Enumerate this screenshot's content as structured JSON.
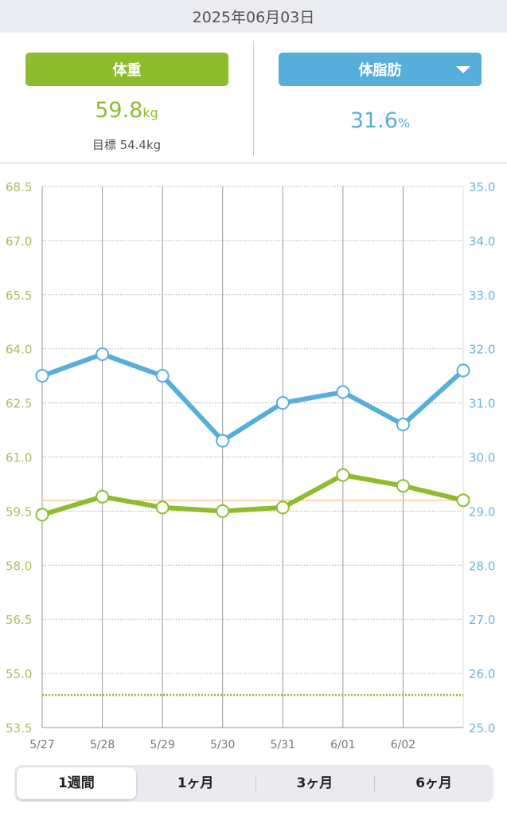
{
  "header": {
    "date": "2025年06月03日"
  },
  "summary": {
    "weight": {
      "label": "体重",
      "value": "59.8",
      "unit": "kg",
      "target_label": "目標 54.4kg"
    },
    "body_fat": {
      "label": "体脂肪",
      "value": "31.6",
      "unit": "%",
      "dropdown_icon": "caret-down-icon"
    }
  },
  "colors": {
    "weight": "#8fbc2f",
    "body_fat": "#58aedb",
    "current_line": "#f5c99a",
    "grid": "#999999"
  },
  "chart_data": {
    "type": "line",
    "categories": [
      "5/27",
      "5/28",
      "5/29",
      "5/30",
      "5/31",
      "6/01",
      "6/02",
      "6/03"
    ],
    "x_tick_labels": [
      "5/27",
      "5/28",
      "5/29",
      "5/30",
      "5/31",
      "6/01",
      "6/02",
      ""
    ],
    "series": [
      {
        "name": "体重",
        "axis": "left",
        "values": [
          59.4,
          59.9,
          59.6,
          59.5,
          59.6,
          60.5,
          60.2,
          59.8
        ]
      },
      {
        "name": "体脂肪",
        "axis": "right",
        "values": [
          31.5,
          31.9,
          31.5,
          30.3,
          31.0,
          31.2,
          30.6,
          31.6
        ]
      }
    ],
    "left_axis": {
      "range": [
        53.5,
        68.5
      ],
      "ticks": [
        "53.5",
        "55.0",
        "56.5",
        "58.0",
        "59.5",
        "61.0",
        "62.5",
        "64.0",
        "65.5",
        "67.0",
        "68.5"
      ]
    },
    "right_axis": {
      "range": [
        25.0,
        35.0
      ],
      "ticks": [
        "25.0",
        "26.0",
        "27.0",
        "28.0",
        "29.0",
        "30.0",
        "31.0",
        "32.0",
        "33.0",
        "34.0",
        "35.0"
      ]
    },
    "reference_lines": [
      {
        "name": "current weight",
        "value": 59.8
      },
      {
        "name": "target weight",
        "value": 54.4
      }
    ]
  },
  "period_tabs": [
    {
      "label": "1週間",
      "active": true
    },
    {
      "label": "1ヶ月",
      "active": false
    },
    {
      "label": "3ヶ月",
      "active": false
    },
    {
      "label": "6ヶ月",
      "active": false
    }
  ]
}
